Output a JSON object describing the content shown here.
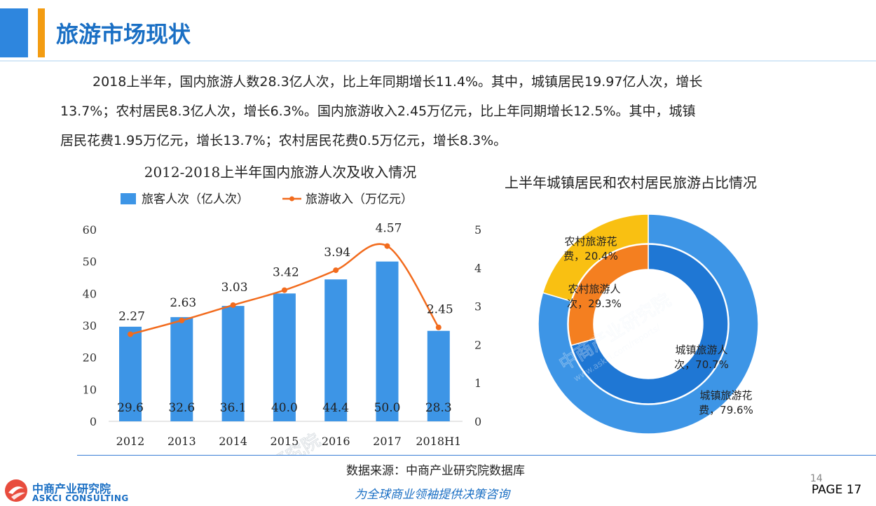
{
  "header": {
    "title": "旅游市场现状"
  },
  "summary": {
    "line1": "2018上半年，国内旅游人数28.3亿人次，比上年同期增长11.4%。其中，城镇居民19.97亿人次，增长",
    "line2": "13.7%；农村居民8.3亿人次，增长6.3%。国内旅游收入2.45万亿元，比上年同期增长12.5%。其中，城镇",
    "line3": "居民花费1.95万亿元，增长13.7%；农村居民花费0.5万亿元，增长8.3%。"
  },
  "chart_data": [
    {
      "type": "bar",
      "title": "2012-2018上半年国内旅游人次及收入情况",
      "categories": [
        "2012",
        "2013",
        "2014",
        "2015",
        "2016",
        "2017",
        "2018H1"
      ],
      "series": [
        {
          "name": "旅客人次（亿人次）",
          "type": "bar",
          "axis": "left",
          "color": "#3d95e6",
          "values": [
            29.6,
            32.6,
            36.1,
            40.0,
            44.4,
            50.0,
            28.3
          ],
          "labels": [
            "29.6",
            "32.6",
            "36.1",
            "40.0",
            "44.4",
            "50.0",
            "28.3"
          ]
        },
        {
          "name": "旅游收入（万亿元）",
          "type": "line",
          "axis": "right",
          "color": "#f26b1d",
          "values": [
            2.27,
            2.63,
            3.03,
            3.42,
            3.94,
            4.57,
            2.45
          ],
          "labels": [
            "2.27",
            "2.63",
            "3.03",
            "3.42",
            "3.94",
            "4.57",
            "2.45"
          ]
        }
      ],
      "ylim_left": [
        0,
        60
      ],
      "yticks_left": [
        "0",
        "10",
        "20",
        "30",
        "40",
        "50",
        "60"
      ],
      "ylim_right": [
        0,
        5
      ],
      "yticks_right": [
        "0",
        "1",
        "2",
        "3",
        "4",
        "5"
      ],
      "legend": "top",
      "grid": false
    },
    {
      "type": "pie",
      "title": "上半年城镇居民和农村居民旅游占比情况",
      "rings": [
        {
          "ring": "outer",
          "slices": [
            {
              "label": "城镇旅游花费",
              "value": 79.6,
              "text": "城镇旅游花\n费，79.6%",
              "color": "#3d95e6"
            },
            {
              "label": "农村旅游花费",
              "value": 20.4,
              "text": "农村旅游花\n费，20.4%",
              "color": "#f9c012"
            }
          ]
        },
        {
          "ring": "inner",
          "slices": [
            {
              "label": "城镇旅游人次",
              "value": 70.7,
              "text": "城镇旅游人\n次，70.7%",
              "color": "#1f77d4"
            },
            {
              "label": "农村旅游人次",
              "value": 29.3,
              "text": "农村旅游人\n次，29.3%",
              "color": "#f47f20"
            }
          ]
        }
      ]
    }
  ],
  "footer": {
    "source": "数据来源：中商产业研究院数据库",
    "slogan": "为全球商业领袖提供决策咨询",
    "logo_cn": "中商产业研究院",
    "logo_en": "ASKCI CONSULTING",
    "page_number": "14",
    "page_label": "PAGE  17"
  },
  "watermark": {
    "text": "中商产业研究院",
    "url": "www.askci.com/reports/"
  }
}
